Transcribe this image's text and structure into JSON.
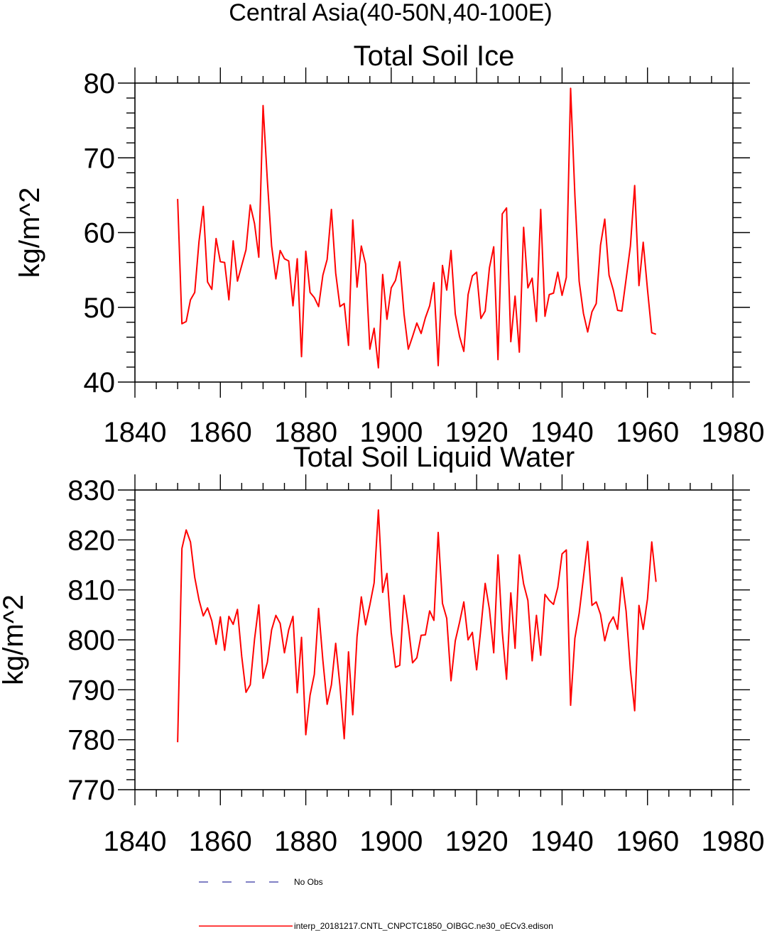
{
  "page_title": "Central Asia(40-50N,40-100E)",
  "legend": [
    {
      "label": "No Obs",
      "color": "#00008b",
      "style": "dashed"
    },
    {
      "label": "interp_20181217.CNTL_CNPCTC1850_OIBGC.ne30_oECv3.edison",
      "color": "#ff0000",
      "style": "solid"
    }
  ],
  "chart_data": [
    {
      "type": "line",
      "title": "Total Soil Ice",
      "xlabel": "",
      "ylabel": "kg/m^2",
      "xlim": [
        1840,
        1980
      ],
      "ylim": [
        40,
        80
      ],
      "xticks": [
        1840,
        1860,
        1880,
        1900,
        1920,
        1940,
        1960,
        1980
      ],
      "xtick_labels": [
        "1840",
        "1860",
        "1880",
        "1900",
        "1920",
        "1940",
        "1960",
        "1980"
      ],
      "yticks": [
        40,
        50,
        60,
        70,
        80
      ],
      "ytick_labels": [
        "40",
        "50",
        "60",
        "70",
        "80"
      ],
      "grid": false,
      "series": [
        {
          "color": "#ff0000",
          "x": [
            1850,
            1851,
            1852,
            1853,
            1854,
            1855,
            1856,
            1857,
            1858,
            1859,
            1860,
            1861,
            1862,
            1863,
            1864,
            1865,
            1866,
            1867,
            1868,
            1869,
            1870,
            1871,
            1872,
            1873,
            1874,
            1875,
            1876,
            1877,
            1878,
            1879,
            1880,
            1881,
            1882,
            1883,
            1884,
            1885,
            1886,
            1887,
            1888,
            1889,
            1890,
            1891,
            1892,
            1893,
            1894,
            1895,
            1896,
            1897,
            1898,
            1899,
            1900,
            1901,
            1902,
            1903,
            1904,
            1905,
            1906,
            1907,
            1908,
            1909,
            1910,
            1911,
            1912,
            1913,
            1914,
            1915,
            1916,
            1917,
            1918,
            1919,
            1920,
            1921,
            1922,
            1923,
            1924,
            1925,
            1926,
            1927,
            1928,
            1929,
            1930,
            1931,
            1932,
            1933,
            1934,
            1935,
            1936,
            1937,
            1938,
            1939,
            1940,
            1941,
            1942,
            1943,
            1944,
            1945,
            1946,
            1947,
            1948,
            1949,
            1950,
            1951,
            1952,
            1953,
            1954,
            1955,
            1956,
            1957,
            1958,
            1959,
            1960,
            1961,
            1962
          ],
          "y": [
            64.5,
            47.8,
            48.1,
            51.0,
            52.0,
            58.8,
            63.5,
            53.4,
            52.4,
            59.2,
            56.1,
            56.0,
            51.0,
            58.9,
            53.5,
            55.6,
            57.7,
            63.7,
            61.2,
            56.7,
            77.0,
            67.0,
            58.2,
            53.8,
            57.6,
            56.5,
            56.2,
            50.2,
            56.5,
            43.4,
            57.5,
            52.0,
            51.3,
            50.1,
            54.3,
            56.4,
            63.1,
            54.6,
            50.1,
            50.5,
            44.9,
            61.7,
            52.7,
            58.2,
            55.8,
            44.4,
            47.2,
            41.9,
            54.4,
            48.4,
            52.6,
            53.6,
            56.1,
            49.1,
            44.4,
            46.1,
            47.9,
            46.5,
            48.6,
            50.2,
            53.3,
            42.2,
            55.6,
            52.3,
            57.6,
            49.1,
            46.1,
            44.1,
            51.7,
            54.2,
            54.7,
            48.5,
            49.5,
            55.3,
            58.1,
            43.0,
            62.5,
            63.3,
            45.4,
            51.5,
            44.0,
            60.7,
            52.6,
            53.9,
            48.1,
            63.1,
            48.8,
            51.7,
            51.9,
            54.7,
            51.6,
            54.0,
            79.3,
            65.0,
            53.5,
            49.2,
            46.7,
            49.4,
            50.5,
            58.3,
            61.8,
            54.3,
            52.3,
            49.6,
            49.5,
            53.8,
            58.2,
            66.3,
            52.9,
            58.7,
            52.4,
            46.6,
            46.4
          ]
        }
      ]
    },
    {
      "type": "line",
      "title": "Total Soil Liquid Water",
      "xlabel": "",
      "ylabel": "kg/m^2",
      "xlim": [
        1840,
        1980
      ],
      "ylim": [
        770,
        830
      ],
      "xticks": [
        1840,
        1860,
        1880,
        1900,
        1920,
        1940,
        1960,
        1980
      ],
      "xtick_labels": [
        "1840",
        "1860",
        "1880",
        "1900",
        "1920",
        "1940",
        "1960",
        "1980"
      ],
      "yticks": [
        770,
        780,
        790,
        800,
        810,
        820,
        830
      ],
      "ytick_labels": [
        "770",
        "780",
        "790",
        "800",
        "810",
        "820",
        "830"
      ],
      "grid": false,
      "series": [
        {
          "color": "#ff0000",
          "x": [
            1850,
            1851,
            1852,
            1853,
            1854,
            1855,
            1856,
            1857,
            1858,
            1859,
            1860,
            1861,
            1862,
            1863,
            1864,
            1865,
            1866,
            1867,
            1868,
            1869,
            1870,
            1871,
            1872,
            1873,
            1874,
            1875,
            1876,
            1877,
            1878,
            1879,
            1880,
            1881,
            1882,
            1883,
            1884,
            1885,
            1886,
            1887,
            1888,
            1889,
            1890,
            1891,
            1892,
            1893,
            1894,
            1895,
            1896,
            1897,
            1898,
            1899,
            1900,
            1901,
            1902,
            1903,
            1904,
            1905,
            1906,
            1907,
            1908,
            1909,
            1910,
            1911,
            1912,
            1913,
            1914,
            1915,
            1916,
            1917,
            1918,
            1919,
            1920,
            1921,
            1922,
            1923,
            1924,
            1925,
            1926,
            1927,
            1928,
            1929,
            1930,
            1931,
            1932,
            1933,
            1934,
            1935,
            1936,
            1937,
            1938,
            1939,
            1940,
            1941,
            1942,
            1943,
            1944,
            1945,
            1946,
            1947,
            1948,
            1949,
            1950,
            1951,
            1952,
            1953,
            1954,
            1955,
            1956,
            1957,
            1958,
            1959,
            1960,
            1961,
            1962
          ],
          "y": [
            779.5,
            818.3,
            822.0,
            819.6,
            812.5,
            808.0,
            804.8,
            806.4,
            803.8,
            799.1,
            804.6,
            797.9,
            804.7,
            803.1,
            806.1,
            796.7,
            789.5,
            791.0,
            800.1,
            807.0,
            792.3,
            795.5,
            802.0,
            804.9,
            803.3,
            797.4,
            802.0,
            804.7,
            789.4,
            800.5,
            781.0,
            788.9,
            793.1,
            806.3,
            795.9,
            787.1,
            791.0,
            799.3,
            790.8,
            780.2,
            797.6,
            785.0,
            800.6,
            808.6,
            803.0,
            807.0,
            811.4,
            826.0,
            809.5,
            813.3,
            801.5,
            794.5,
            794.9,
            808.9,
            802.8,
            795.4,
            796.4,
            800.9,
            801.0,
            805.8,
            803.9,
            821.5,
            807.3,
            804.3,
            791.8,
            799.8,
            803.5,
            807.6,
            800.0,
            801.5,
            794.0,
            802.4,
            811.3,
            806.1,
            797.4,
            817.0,
            801.6,
            792.1,
            809.4,
            798.3,
            817.0,
            811.2,
            807.9,
            795.8,
            804.9,
            796.9,
            809.1,
            807.9,
            807.1,
            810.5,
            817.2,
            818.0,
            786.9,
            800.3,
            805.3,
            812.4,
            819.7,
            806.9,
            807.6,
            805.1,
            799.8,
            803.2,
            804.6,
            802.1,
            812.5,
            805.7,
            794.0,
            785.8,
            806.9,
            802.1,
            808.2,
            819.6,
            811.6
          ]
        }
      ]
    }
  ]
}
